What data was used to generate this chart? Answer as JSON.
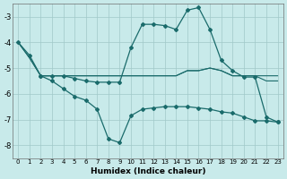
{
  "xlabel": "Humidex (Indice chaleur)",
  "bg_color": "#c8eaea",
  "grid_color": "#a0c8c8",
  "line_color": "#1a6b6b",
  "xlim": [
    -0.5,
    23.5
  ],
  "ylim": [
    -8.5,
    -2.5
  ],
  "yticks": [
    -8,
    -7,
    -6,
    -5,
    -4,
    -3
  ],
  "xticks": [
    0,
    1,
    2,
    3,
    4,
    5,
    6,
    7,
    8,
    9,
    10,
    11,
    12,
    13,
    14,
    15,
    16,
    17,
    18,
    19,
    20,
    21,
    22,
    23
  ],
  "line1_x": [
    0,
    1,
    2,
    3,
    4,
    5,
    6,
    7,
    8,
    9,
    10,
    11,
    12,
    13,
    14,
    15,
    16,
    17,
    18,
    19,
    20,
    21,
    22,
    23
  ],
  "line1_y": [
    -4.0,
    -4.6,
    -5.3,
    -5.3,
    -5.3,
    -5.3,
    -5.3,
    -5.3,
    -5.3,
    -5.3,
    -5.3,
    -5.3,
    -5.3,
    -5.3,
    -5.3,
    -5.1,
    -5.1,
    -5.0,
    -5.1,
    -5.3,
    -5.3,
    -5.3,
    -5.3,
    -5.3
  ],
  "line2_x": [
    0,
    1,
    2,
    3,
    4,
    5,
    6,
    7,
    8,
    9,
    10,
    11,
    12,
    13,
    14,
    15,
    16,
    17,
    18,
    19,
    20,
    21,
    22,
    23
  ],
  "line2_y": [
    -4.0,
    -4.6,
    -5.3,
    -5.3,
    -5.3,
    -5.3,
    -5.3,
    -5.3,
    -5.3,
    -5.3,
    -5.3,
    -5.3,
    -5.3,
    -5.3,
    -5.3,
    -5.1,
    -5.1,
    -5.0,
    -5.1,
    -5.3,
    -5.3,
    -5.3,
    -5.5,
    -5.5
  ],
  "line3_x": [
    0,
    1,
    2,
    3,
    4,
    5,
    6,
    7,
    8,
    9,
    10,
    11,
    12,
    13,
    14,
    15,
    16,
    17,
    18,
    19,
    20,
    21,
    22,
    23
  ],
  "line3_y": [
    -4.0,
    -4.5,
    -5.3,
    -5.3,
    -5.3,
    -5.4,
    -5.5,
    -5.55,
    -5.55,
    -5.55,
    -4.2,
    -3.3,
    -3.3,
    -3.35,
    -3.5,
    -2.75,
    -2.65,
    -3.5,
    -4.7,
    -5.1,
    -5.35,
    -5.35,
    -6.9,
    -7.1
  ],
  "line4_x": [
    2,
    3,
    4,
    5,
    6,
    7,
    8,
    9,
    10,
    11,
    12,
    13,
    14,
    15,
    16,
    17,
    18,
    19,
    20,
    21,
    22,
    23
  ],
  "line4_y": [
    -5.3,
    -5.5,
    -5.8,
    -6.1,
    -6.25,
    -6.6,
    -7.75,
    -7.9,
    -6.85,
    -6.6,
    -6.55,
    -6.5,
    -6.5,
    -6.5,
    -6.55,
    -6.6,
    -6.7,
    -6.75,
    -6.9,
    -7.05,
    -7.05,
    -7.1
  ]
}
